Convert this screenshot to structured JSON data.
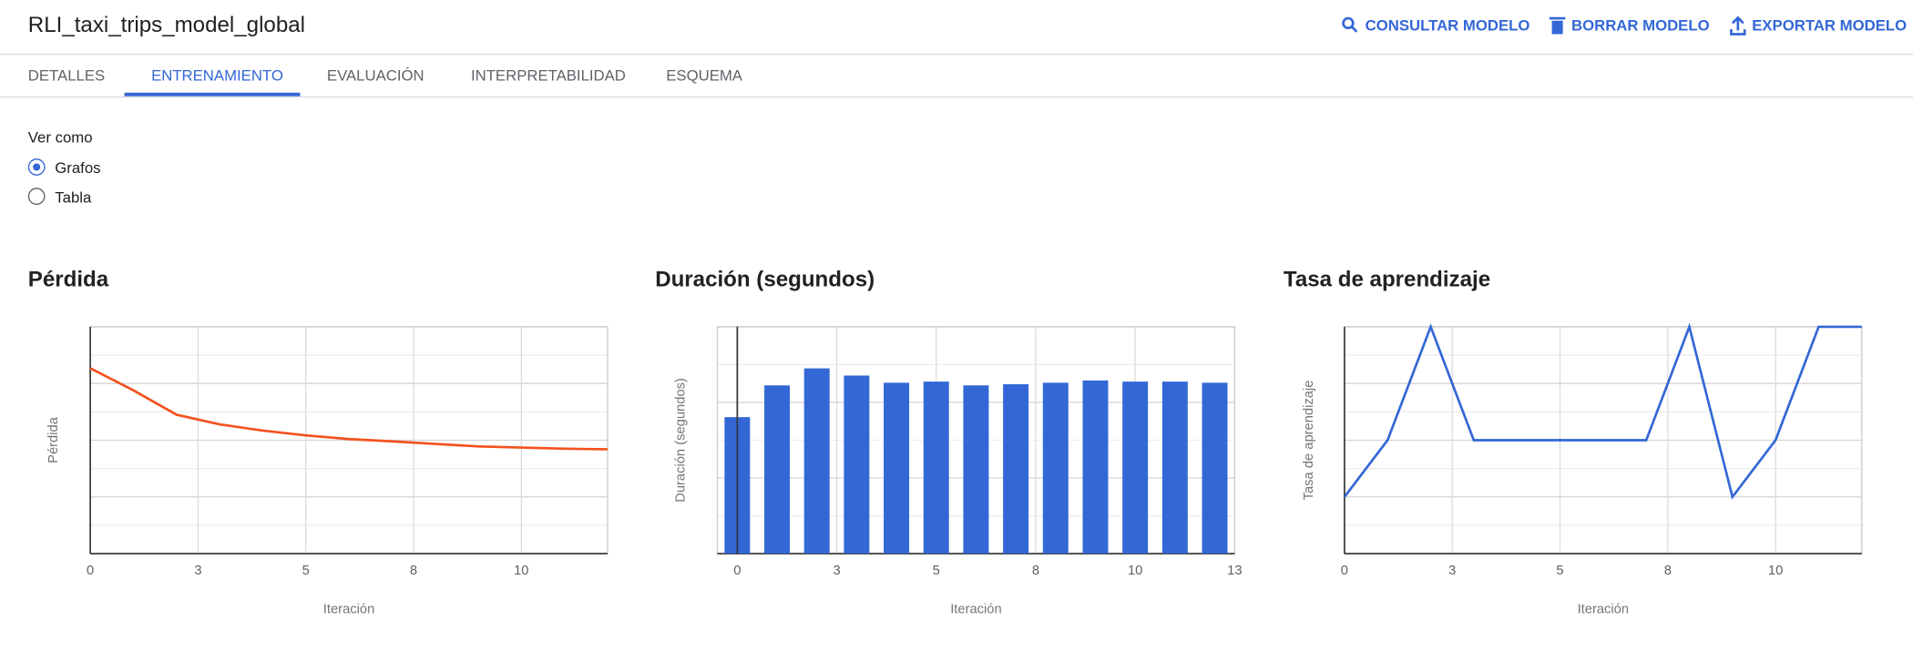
{
  "header": {
    "title": "RLI_taxi_trips_model_global",
    "actions": [
      "CONSULTAR MODELO",
      "BORRAR MODELO",
      "EXPORTAR MODELO"
    ]
  },
  "tabs": {
    "items": [
      "DETALLES",
      "ENTRENAMIENTO",
      "EVALUACIÓN",
      "INTERPRETABILIDAD",
      "ESQUEMA"
    ],
    "active": 1
  },
  "view": {
    "label": "Ver como",
    "options": [
      "Grafos",
      "Tabla"
    ],
    "selected": 0
  },
  "chart_data": [
    {
      "type": "line",
      "title": "Pérdida",
      "x_label": "Iteración",
      "y_label": "Pérdida",
      "color": "#f4511e",
      "x": [
        0,
        1,
        2,
        3,
        4,
        5,
        6,
        7,
        8,
        9,
        10,
        11,
        12
      ],
      "values": [
        6.54,
        5.76,
        4.9,
        4.56,
        4.34,
        4.17,
        4.04,
        3.96,
        3.87,
        3.78,
        3.74,
        3.7,
        3.68
      ],
      "xlim": [
        0,
        12
      ],
      "xticks": [
        0,
        {
          "value": 2.5,
          "label": "3"
        },
        5,
        {
          "value": 7.5,
          "label": "8"
        },
        10
      ],
      "ylim": [
        0,
        8
      ],
      "yticks": [
        0,
        1,
        2,
        3,
        4,
        5,
        6,
        7,
        8
      ],
      "grid": true
    },
    {
      "type": "bar",
      "title": "Duración (segundos)",
      "x_label": "Iteración",
      "y_label": "Duración (segundos)",
      "color": "#3367d6",
      "x": [
        0,
        1,
        2,
        3,
        4,
        5,
        6,
        7,
        8,
        9,
        10,
        11,
        12
      ],
      "values": [
        3.61,
        4.45,
        4.9,
        4.71,
        4.52,
        4.55,
        4.45,
        4.48,
        4.52,
        4.58,
        4.55,
        4.55,
        4.52
      ],
      "xlim": [
        -0.5,
        12.5
      ],
      "xticks": [
        0,
        {
          "value": 2.5,
          "label": "3"
        },
        5,
        {
          "value": 7.5,
          "label": "8"
        },
        10,
        {
          "value": 12.5,
          "label": "13"
        }
      ],
      "ylim": [
        0,
        6
      ],
      "yticks": [
        0,
        1,
        2,
        3,
        4,
        5,
        6
      ],
      "grid": true
    },
    {
      "type": "line",
      "title": "Tasa de aprendizaje",
      "x_label": "Iteración",
      "y_label": "Tasa de aprendizaje",
      "color": "#3367d6",
      "x": [
        0,
        1,
        2,
        3,
        4,
        5,
        6,
        7,
        8,
        9,
        10,
        11,
        12
      ],
      "values": [
        2,
        4,
        8,
        4,
        4,
        4,
        4,
        4,
        8,
        2,
        4,
        8,
        8
      ],
      "xlim": [
        0,
        12
      ],
      "xticks": [
        0,
        {
          "value": 2.5,
          "label": "3"
        },
        5,
        {
          "value": 7.5,
          "label": "8"
        },
        10
      ],
      "ylim": [
        0,
        8
      ],
      "yticks": [
        0,
        1,
        2,
        3,
        4,
        5,
        6,
        7,
        8
      ],
      "grid": true
    }
  ]
}
